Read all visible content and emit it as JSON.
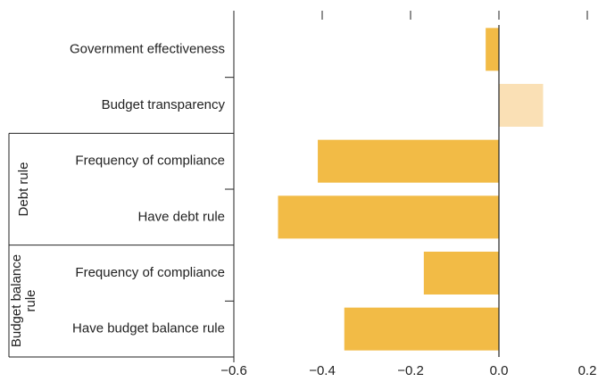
{
  "chart_data": {
    "type": "hbar",
    "categories": [
      "Government effectiveness",
      "Budget transparency",
      "Frequency of compliance",
      "Have debt rule",
      "Frequency of compliance",
      "Have budget balance rule"
    ],
    "groups": [
      "Debt rule",
      "Budget balance rule"
    ],
    "values": [
      -0.03,
      0.1,
      -0.41,
      -0.5,
      -0.17,
      -0.35
    ],
    "colors": [
      "#f2bb46",
      "#fae0b5",
      "#f2bb46",
      "#f2bb46",
      "#f2bb46",
      "#f2bb46"
    ],
    "xlim": [
      -0.6,
      0.2
    ],
    "xticks": [
      {
        "value": -0.6,
        "label": "−0.6"
      },
      {
        "value": -0.4,
        "label": "−0.4"
      },
      {
        "value": -0.2,
        "label": "−0.2"
      },
      {
        "value": 0,
        "label": "0.0"
      },
      0.2
    ]
  }
}
